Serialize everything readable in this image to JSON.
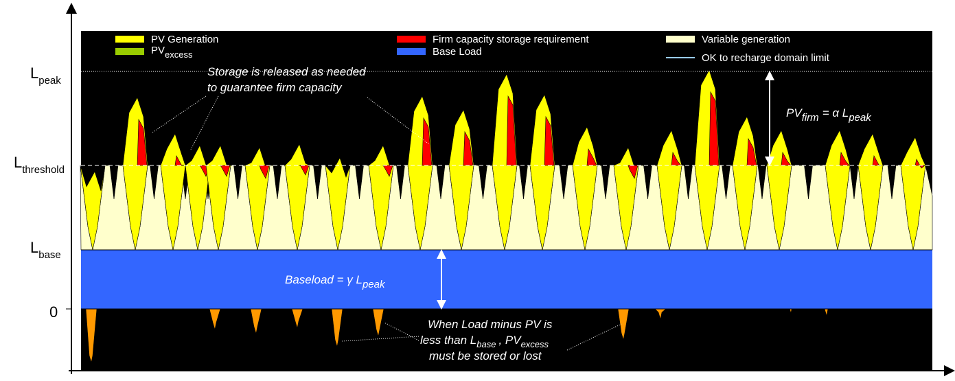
{
  "axis_labels": {
    "peak": {
      "main": "L",
      "sub": "peak"
    },
    "threshold": {
      "main": "L",
      "sub": "threshold"
    },
    "base": {
      "main": "L",
      "sub": "base"
    },
    "zero": "0"
  },
  "legend": {
    "pv_generation": "PV Generation",
    "pv_excess": {
      "main": "PV",
      "sub": "excess"
    },
    "firm": "Firm capacity storage requirement",
    "base_load": "Base Load",
    "variable": "Variable generation",
    "recharge": "OK to recharge domain limit"
  },
  "annotations": {
    "storage": [
      "Storage is released as needed",
      "to guarantee firm capacity"
    ],
    "pv_firm": {
      "a": "PV",
      "a_sub": "firm",
      "eq": "= α L",
      "eq_sub": "peak"
    },
    "baseload": {
      "a": "Baseload = γ L",
      "a_sub": "peak"
    },
    "excess": {
      "line1": "When Load minus PV is",
      "line2_a": "less than L",
      "line2_sub": "base",
      "line2_b": ", PV",
      "line2_sub2": "excess",
      "line3": "must  be stored or lost"
    }
  }
}
